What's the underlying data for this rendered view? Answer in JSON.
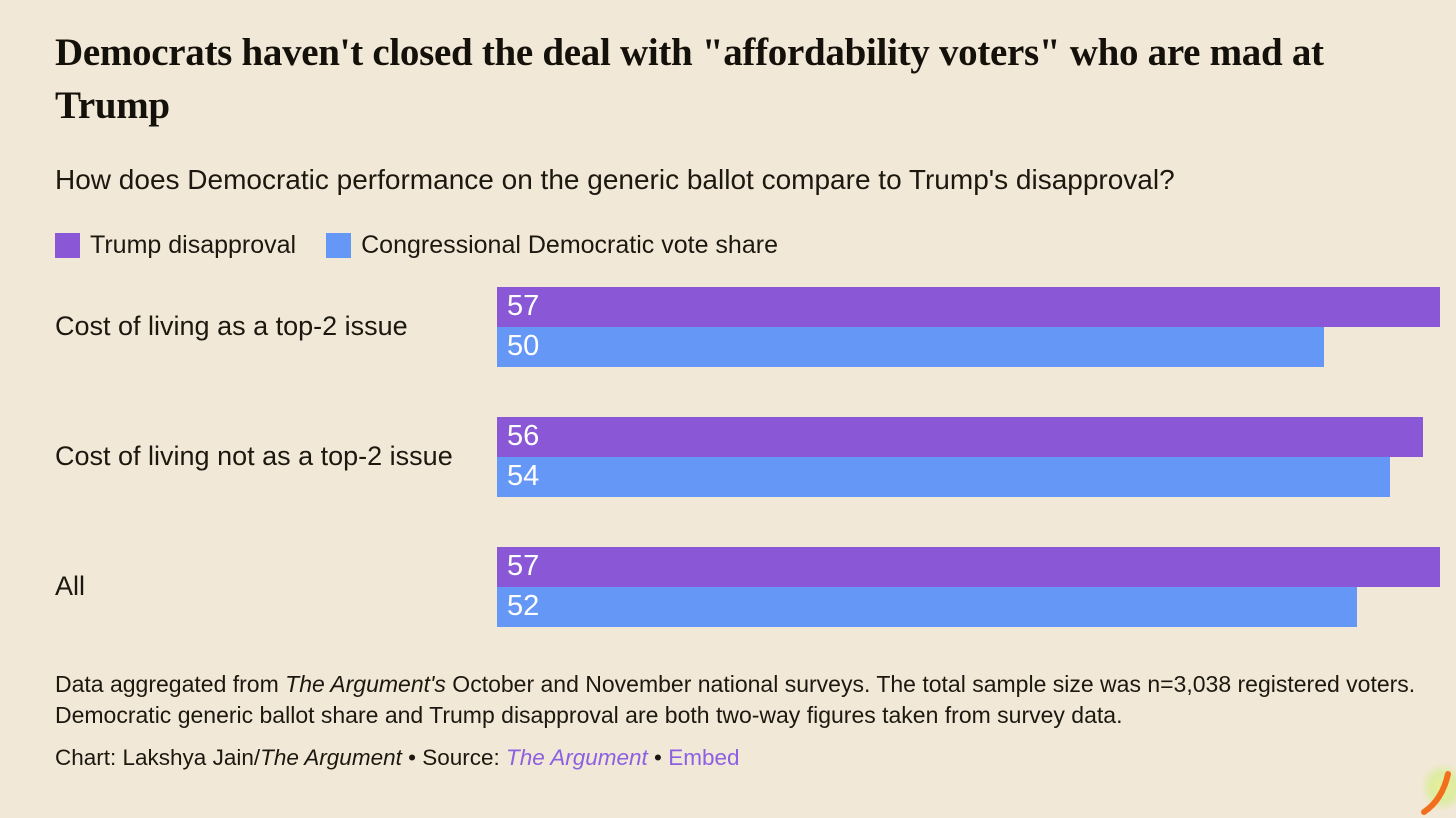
{
  "header": {
    "title": "Democrats haven't closed the deal with \"affordability voters\" who are mad at Trump",
    "subtitle": "How does Democratic performance on the generic ballot compare to Trump's disapproval?"
  },
  "colors": {
    "background": "#f2e8d7",
    "trump_disapproval_purple": "#8a57d6",
    "dem_vote_share_blue": "#6597f7",
    "link_purple": "#8d60e2",
    "value_label_white": "#ffffff"
  },
  "legend": [
    {
      "label": "Trump disapproval",
      "swatch_color": "#8a57d6"
    },
    {
      "label": "Congressional Democratic vote share",
      "swatch_color": "#6597f7"
    }
  ],
  "chart_data": {
    "type": "bar",
    "orientation": "horizontal",
    "title": "Democrats haven't closed the deal with \"affordability voters\" who are mad at Trump",
    "subtitle": "How does Democratic performance on the generic ballot compare to Trump's disapproval?",
    "categories": [
      "Cost of living as a top-2 issue",
      "Cost of living not as a top-2 issue",
      "All"
    ],
    "series": [
      {
        "name": "Trump disapproval",
        "key": "trump-disapproval",
        "color": "#8a57d6",
        "values": [
          57,
          56,
          57
        ]
      },
      {
        "name": "Congressional Democratic vote share",
        "key": "dem-vote-share",
        "color": "#6597f7",
        "values": [
          50,
          54,
          52
        ]
      }
    ],
    "xlim": [
      0,
      57
    ],
    "value_labels": "inside-left",
    "legend_position": "top",
    "grid": false
  },
  "notes": {
    "segments": [
      {
        "text": "Data aggregated from ",
        "style": "normal"
      },
      {
        "text": "The Argument's",
        "style": "italic"
      },
      {
        "text": " October and November national surveys. The total sample size was n=3,038 registered voters. Democratic generic ballot share and Trump disapproval are both two-way figures taken from survey data.",
        "style": "normal"
      }
    ]
  },
  "credit": {
    "segments": [
      {
        "text": "Chart: Lakshya Jain/",
        "style": "normal"
      },
      {
        "text": "The Argument",
        "style": "italic"
      },
      {
        "text": " • Source: ",
        "style": "normal"
      },
      {
        "text": "The Argument",
        "style": "link-italic",
        "name": "source-link"
      },
      {
        "text": " • ",
        "style": "normal"
      },
      {
        "text": "Embed",
        "style": "link",
        "name": "embed-link"
      }
    ]
  }
}
